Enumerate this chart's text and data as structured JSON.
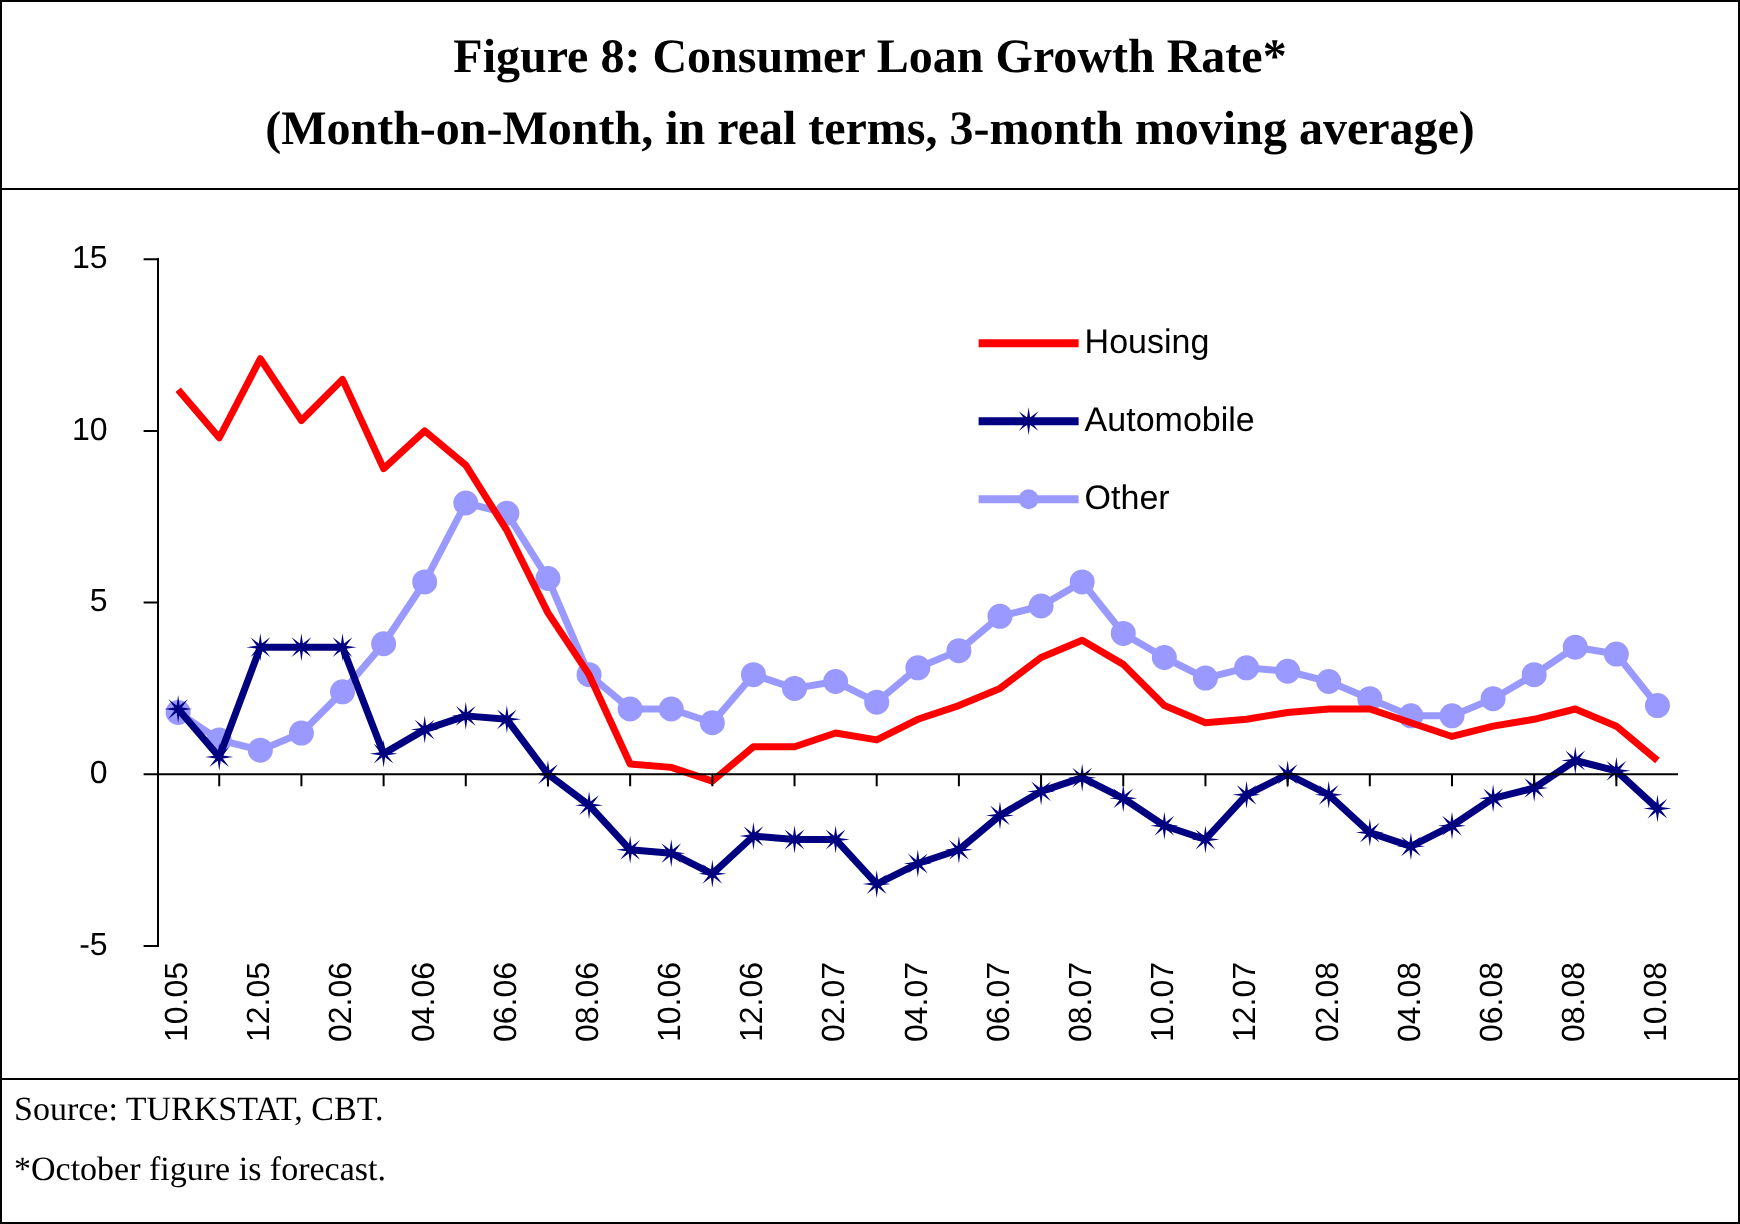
{
  "chart_data": {
    "type": "line",
    "title": "Figure 8: Consumer Loan Growth Rate*",
    "subtitle": "(Month-on-Month, in real terms, 3-month moving average)",
    "categories": [
      "10.05",
      null,
      "12.05",
      null,
      "02.06",
      null,
      "04.06",
      null,
      "06.06",
      null,
      "08.06",
      null,
      "10.06",
      null,
      "12.06",
      null,
      "02.07",
      null,
      "04.07",
      null,
      "06.07",
      null,
      "08.07",
      null,
      "10.07",
      null,
      "12.07",
      null,
      "02.08",
      null,
      "04.08",
      null,
      "06.08",
      null,
      "08.08",
      null,
      "10.08"
    ],
    "series": [
      {
        "name": "Housing",
        "color": "#ff0000",
        "marker": "none",
        "values": [
          11.2,
          9.8,
          12.1,
          10.3,
          11.5,
          8.9,
          10.0,
          9.0,
          7.1,
          4.7,
          2.9,
          0.3,
          0.2,
          -0.2,
          0.8,
          0.8,
          1.2,
          1.0,
          1.6,
          2.0,
          2.5,
          3.4,
          3.9,
          3.2,
          2.0,
          1.5,
          1.6,
          1.8,
          1.9,
          1.9,
          1.5,
          1.1,
          1.4,
          1.6,
          1.9,
          1.4,
          0.4
        ]
      },
      {
        "name": "Automobile",
        "color": "#000080",
        "marker": "star",
        "values": [
          1.9,
          0.5,
          3.7,
          3.7,
          3.7,
          0.6,
          1.3,
          1.7,
          1.6,
          0.0,
          -0.9,
          -2.2,
          -2.3,
          -2.9,
          -1.8,
          -1.9,
          -1.9,
          -3.2,
          -2.6,
          -2.2,
          -1.2,
          -0.5,
          -0.1,
          -0.7,
          -1.5,
          -1.9,
          -0.6,
          0.0,
          -0.6,
          -1.7,
          -2.1,
          -1.5,
          -0.7,
          -0.4,
          0.4,
          0.1,
          -1.0
        ]
      },
      {
        "name": "Other",
        "color": "#9999ff",
        "marker": "circle",
        "values": [
          1.8,
          1.0,
          0.7,
          1.2,
          2.4,
          3.8,
          5.6,
          7.9,
          7.6,
          5.7,
          2.9,
          1.9,
          1.9,
          1.5,
          2.9,
          2.5,
          2.7,
          2.1,
          3.1,
          3.6,
          4.6,
          4.9,
          5.6,
          4.1,
          3.4,
          2.8,
          3.1,
          3.0,
          2.7,
          2.2,
          1.7,
          1.7,
          2.2,
          2.9,
          3.7,
          3.5,
          2.0
        ]
      }
    ],
    "ref_lines": [
      {
        "axis": "y",
        "value": 0,
        "color": "#000000"
      }
    ],
    "ylim": [
      -5,
      15
    ],
    "yticks": [
      -5,
      0,
      5,
      10,
      15
    ],
    "grid": false,
    "legend": "top right",
    "annotations": [
      "Source: TURKSTAT, CBT.",
      "*October figure is forecast."
    ]
  }
}
